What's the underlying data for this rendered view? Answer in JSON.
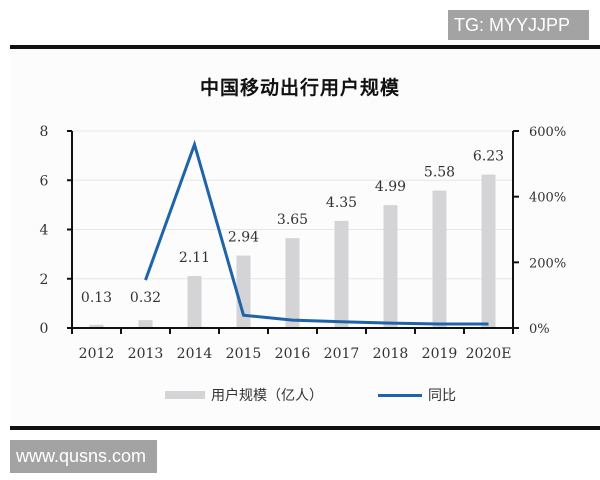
{
  "watermarks": {
    "top": "TG: MYYJJPP",
    "bottom": "www.qusns.com"
  },
  "legend": {
    "bar_label": "用户规模（亿人）",
    "line_label": "同比"
  },
  "colors": {
    "bar": "#d4d4d6",
    "line": "#1f64a8",
    "grid": "#e6e6e6",
    "axis": "#111111"
  },
  "chart_data": {
    "type": "bar+line",
    "title": "中国移动出行用户规模",
    "categories": [
      "2012",
      "2013",
      "2014",
      "2015",
      "2016",
      "2017",
      "2018",
      "2019",
      "2020E"
    ],
    "series": [
      {
        "name": "用户规模（亿人）",
        "type": "bar",
        "axis": "left",
        "values": [
          0.13,
          0.32,
          2.11,
          2.94,
          3.65,
          4.35,
          4.99,
          5.58,
          6.23
        ],
        "labels": [
          "0.13",
          "0.32",
          "2.11",
          "2.94",
          "3.65",
          "4.35",
          "4.99",
          "5.58",
          "6.23"
        ]
      },
      {
        "name": "同比",
        "type": "line",
        "axis": "right",
        "values": [
          null,
          146,
          559,
          39,
          24,
          19,
          15,
          12,
          12
        ],
        "unit": "%"
      }
    ],
    "left_axis": {
      "ylim": [
        0,
        8
      ],
      "ticks": [
        "0",
        "2",
        "4",
        "6",
        "8"
      ]
    },
    "right_axis": {
      "ylim": [
        0,
        600
      ],
      "ticks": [
        "0%",
        "200%",
        "400%",
        "600%"
      ]
    },
    "grid": true,
    "legend_position": "bottom"
  }
}
